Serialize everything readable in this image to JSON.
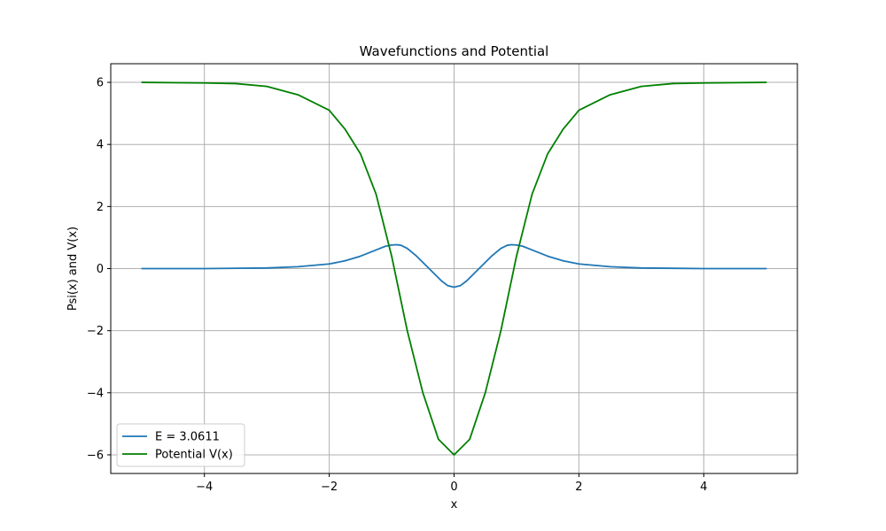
{
  "chart_data": {
    "type": "line",
    "title": "Wavefunctions and Potential",
    "xlabel": "x",
    "ylabel": "Psi(x) and V(x)",
    "xlim": [
      -5.5,
      5.5
    ],
    "ylim": [
      -6.6,
      6.6
    ],
    "xticks": [
      -4,
      -2,
      0,
      2,
      4
    ],
    "yticks": [
      -6,
      -4,
      -2,
      0,
      2,
      4,
      6
    ],
    "grid": true,
    "legend_position": "bottom-left",
    "series": [
      {
        "name": "E = 3.0611",
        "color": "#1f77b4",
        "x": [
          -5,
          -4,
          -3,
          -2.5,
          -2,
          -1.75,
          -1.5,
          -1.25,
          -1.1,
          -1,
          -0.92,
          -0.85,
          -0.75,
          -0.6,
          -0.5,
          -0.4,
          -0.3,
          -0.2,
          -0.1,
          0,
          0.1,
          0.2,
          0.3,
          0.4,
          0.5,
          0.6,
          0.75,
          0.85,
          0.92,
          1,
          1.1,
          1.25,
          1.5,
          1.75,
          2,
          2.5,
          3,
          4,
          5
        ],
        "y": [
          0,
          0,
          0.02,
          0.06,
          0.15,
          0.25,
          0.4,
          0.6,
          0.72,
          0.76,
          0.77,
          0.75,
          0.65,
          0.4,
          0.2,
          0,
          -0.2,
          -0.4,
          -0.55,
          -0.6,
          -0.55,
          -0.4,
          -0.2,
          0,
          0.2,
          0.4,
          0.65,
          0.75,
          0.77,
          0.76,
          0.72,
          0.6,
          0.4,
          0.25,
          0.15,
          0.06,
          0.02,
          0,
          0
        ]
      },
      {
        "name": "Potential V(x)",
        "color": "#008000",
        "x": [
          -5,
          -4,
          -3.5,
          -3,
          -2.5,
          -2,
          -1.75,
          -1.5,
          -1.25,
          -1,
          -0.75,
          -0.5,
          -0.25,
          0,
          0.25,
          0.5,
          0.75,
          1,
          1.25,
          1.5,
          1.75,
          2,
          2.5,
          3,
          3.5,
          4,
          5
        ],
        "y": [
          6,
          5.98,
          5.96,
          5.87,
          5.6,
          5.1,
          4.5,
          3.7,
          2.4,
          0.4,
          -2,
          -4,
          -5.5,
          -6,
          -5.5,
          -4,
          -2,
          0.4,
          2.4,
          3.7,
          4.5,
          5.1,
          5.6,
          5.87,
          5.96,
          5.98,
          6
        ]
      }
    ]
  }
}
